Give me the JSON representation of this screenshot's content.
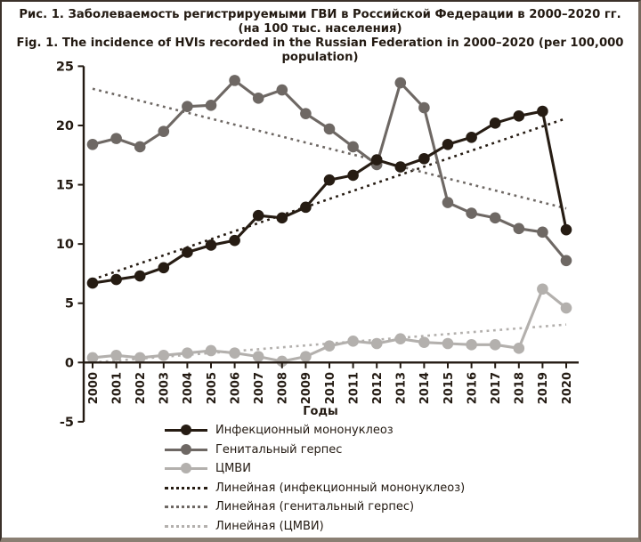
{
  "figure": {
    "title_ru": "Рис. 1. Заболеваемость регистрируемыми ГВИ в Российской Федерации в 2000–2020 гг.",
    "title_ru2": "(на 100 тыс. населения)",
    "title_en": "Fig. 1. The incidence of HVIs recorded in the Russian Federation in 2000–2020 (per 100,000 population)"
  },
  "colors": {
    "mononucleosis": "#261c13",
    "genital_herpes": "#6e6864",
    "cmv": "#b3b0ad",
    "text": "#231a12",
    "axis": "#231a12",
    "background": "#ffffff",
    "frame": "#3b312a"
  },
  "chart_data": {
    "type": "line",
    "title": "Заболеваемость регистрируемыми ГВИ в Российской Федерации в 2000–2020 гг. (на 100 тыс. населения)",
    "xlabel": "Годы",
    "ylabel": "",
    "ylim": [
      -5,
      25
    ],
    "y_ticks": [
      25,
      20,
      15,
      10,
      5,
      0,
      -5
    ],
    "grid": false,
    "legend_position": "bottom",
    "categories": [
      "2000",
      "2001",
      "2002",
      "2003",
      "2004",
      "2005",
      "2006",
      "2007",
      "2008",
      "2009",
      "2010",
      "2011",
      "2012",
      "2013",
      "2014",
      "2015",
      "2016",
      "2017",
      "2018",
      "2019",
      "2020"
    ],
    "series": [
      {
        "name": "Инфекционный мононуклеоз",
        "color": "#261c13",
        "values": [
          6.7,
          7.0,
          7.3,
          8.0,
          9.3,
          9.9,
          10.3,
          12.4,
          12.2,
          13.1,
          15.4,
          15.8,
          17.1,
          16.5,
          17.2,
          18.4,
          19.0,
          20.2,
          20.8,
          21.2,
          11.2
        ]
      },
      {
        "name": "Генитальный герпес",
        "color": "#6e6864",
        "values": [
          18.4,
          18.9,
          18.2,
          19.5,
          21.6,
          21.7,
          23.8,
          22.3,
          23.0,
          21.0,
          19.7,
          18.2,
          16.7,
          23.6,
          21.5,
          13.5,
          12.6,
          12.2,
          11.3,
          11.0,
          8.6
        ]
      },
      {
        "name": "ЦМВИ",
        "color": "#b3b0ad",
        "values": [
          0.4,
          0.6,
          0.4,
          0.6,
          0.8,
          1.0,
          0.8,
          0.5,
          0.1,
          0.5,
          1.4,
          1.8,
          1.6,
          2.0,
          1.7,
          1.6,
          1.5,
          1.5,
          1.2,
          6.2,
          4.6
        ]
      }
    ],
    "trend_lines": [
      {
        "name": "Линейная (инфекционный мононуклеоз)",
        "color": "#261c13",
        "start": 7.0,
        "end": 20.6
      },
      {
        "name": "Линейная (генитальный герпес)",
        "color": "#6e6864",
        "start": 23.1,
        "end": 13.0
      },
      {
        "name": "Линейная (ЦМВИ)",
        "color": "#b3b0ad",
        "start": 0.0,
        "end": 3.2
      }
    ]
  },
  "legend": {
    "items": [
      {
        "label": "Инфекционный мононуклеоз",
        "color": "#261c13",
        "style": "solid"
      },
      {
        "label": "Генитальный герпес",
        "color": "#6e6864",
        "style": "solid"
      },
      {
        "label": "ЦМВИ",
        "color": "#b3b0ad",
        "style": "solid"
      },
      {
        "label": "Линейная (инфекционный мононуклеоз)",
        "color": "#261c13",
        "style": "dotted"
      },
      {
        "label": "Линейная (генитальный герпес)",
        "color": "#6e6864",
        "style": "dotted"
      },
      {
        "label": "Линейная (ЦМВИ)",
        "color": "#b3b0ad",
        "style": "dotted"
      }
    ]
  }
}
